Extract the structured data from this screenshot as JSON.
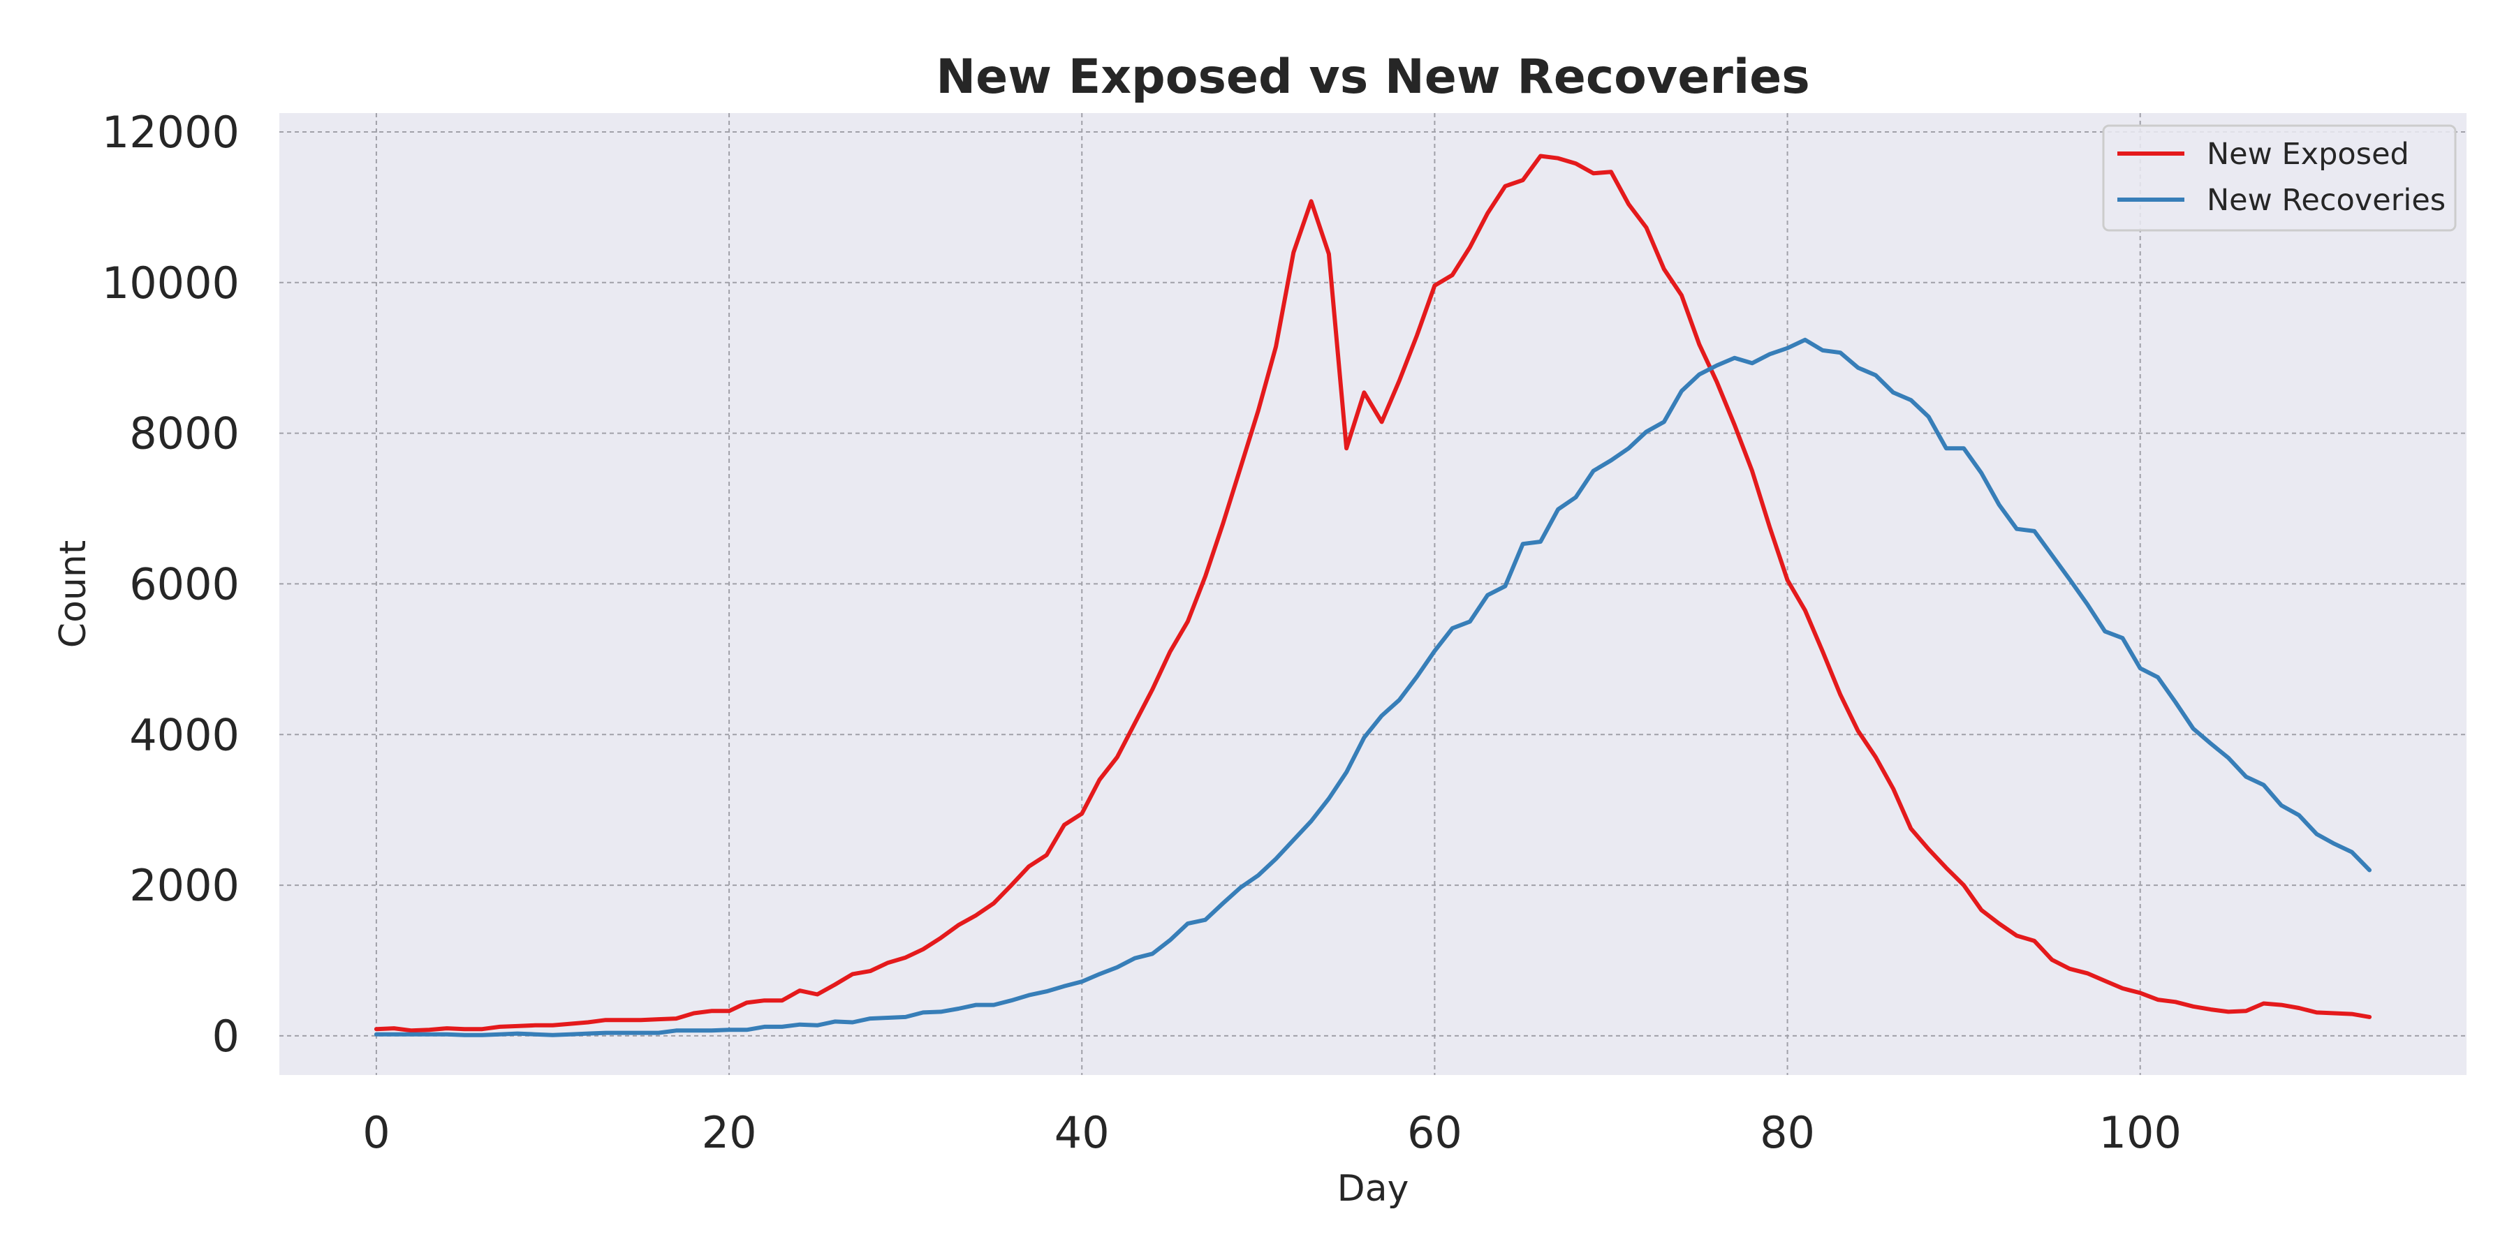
{
  "colors": {
    "plot_background": "#eaeaf2",
    "grid": "#a0a0a8",
    "exposed": "#e41a1c",
    "recoveries": "#377eb8",
    "legend_background": "#eaeaf2",
    "legend_border": "#cccccc"
  },
  "chart_data": {
    "type": "line",
    "title": "New Exposed vs New Recoveries",
    "xlabel": "Day",
    "ylabel": "Count",
    "xlim": [
      -5.5,
      118.5
    ],
    "ylim": [
      -520,
      12250
    ],
    "xticks": [
      0,
      20,
      40,
      60,
      80,
      100
    ],
    "yticks": [
      0,
      2000,
      4000,
      6000,
      8000,
      10000,
      12000
    ],
    "grid": true,
    "grid_style": "dashed",
    "legend_position": "top-right",
    "x": [
      0,
      1,
      2,
      3,
      4,
      5,
      6,
      7,
      8,
      9,
      10,
      11,
      12,
      13,
      14,
      15,
      16,
      17,
      18,
      19,
      20,
      21,
      22,
      23,
      24,
      25,
      26,
      27,
      28,
      29,
      30,
      31,
      32,
      33,
      34,
      35,
      36,
      37,
      38,
      39,
      40,
      41,
      42,
      43,
      44,
      45,
      46,
      47,
      48,
      49,
      50,
      51,
      52,
      53,
      54,
      55,
      56,
      57,
      58,
      59,
      60,
      61,
      62,
      63,
      64,
      65,
      66,
      67,
      68,
      69,
      70,
      71,
      72,
      73,
      74,
      75,
      76,
      77,
      78,
      79,
      80,
      81,
      82,
      83,
      84,
      85,
      86,
      87,
      88,
      89,
      90,
      91,
      92,
      93,
      94,
      95,
      96,
      97,
      98,
      99,
      100,
      101,
      102,
      103,
      104,
      105,
      106,
      107,
      108,
      109,
      110,
      111,
      112,
      113
    ],
    "series": [
      {
        "name": "New Exposed",
        "color_key": "exposed",
        "values": [
          90,
          100,
          70,
          80,
          100,
          90,
          90,
          120,
          130,
          140,
          140,
          160,
          180,
          210,
          210,
          210,
          220,
          230,
          300,
          330,
          330,
          440,
          470,
          470,
          600,
          550,
          680,
          820,
          860,
          970,
          1040,
          1150,
          1300,
          1470,
          1600,
          1760,
          2000,
          2250,
          2400,
          2800,
          2950,
          3400,
          3700,
          4150,
          4600,
          5100,
          5500,
          6100,
          6800,
          7550,
          8300,
          9150,
          10400,
          11080,
          10380,
          7800,
          8540,
          8150,
          8700,
          9300,
          9960,
          10100,
          10470,
          10920,
          11280,
          11360,
          11680,
          11650,
          11580,
          11450,
          11470,
          11040,
          10730,
          10180,
          9830,
          9180,
          8680,
          8110,
          7500,
          6750,
          6050,
          5650,
          5100,
          4530,
          4050,
          3700,
          3280,
          2750,
          2480,
          2230,
          2000,
          1670,
          1490,
          1330,
          1260,
          1010,
          890,
          830,
          730,
          630,
          570,
          480,
          450,
          390,
          350,
          320,
          330,
          430,
          410,
          370,
          310,
          300,
          290,
          250
        ]
      },
      {
        "name": "New Recoveries",
        "color_key": "recoveries",
        "values": [
          20,
          20,
          20,
          20,
          20,
          10,
          10,
          20,
          30,
          20,
          10,
          20,
          30,
          40,
          40,
          40,
          40,
          70,
          70,
          70,
          80,
          80,
          120,
          120,
          150,
          140,
          190,
          180,
          230,
          240,
          250,
          310,
          320,
          360,
          410,
          410,
          470,
          540,
          590,
          660,
          720,
          820,
          910,
          1030,
          1090,
          1270,
          1490,
          1540,
          1760,
          1970,
          2130,
          2350,
          2600,
          2850,
          3150,
          3500,
          3960,
          4250,
          4460,
          4770,
          5110,
          5410,
          5500,
          5850,
          5970,
          6530,
          6560,
          6990,
          7150,
          7500,
          7640,
          7800,
          8020,
          8150,
          8560,
          8780,
          8900,
          9000,
          8930,
          9050,
          9130,
          9240,
          9100,
          9070,
          8870,
          8770,
          8540,
          8440,
          8220,
          7800,
          7800,
          7470,
          7050,
          6730,
          6700,
          6380,
          6060,
          5730,
          5370,
          5280,
          4880,
          4760,
          4430,
          4080,
          3880,
          3690,
          3440,
          3330,
          3060,
          2930,
          2680,
          2550,
          2440,
          2200
        ]
      }
    ]
  }
}
